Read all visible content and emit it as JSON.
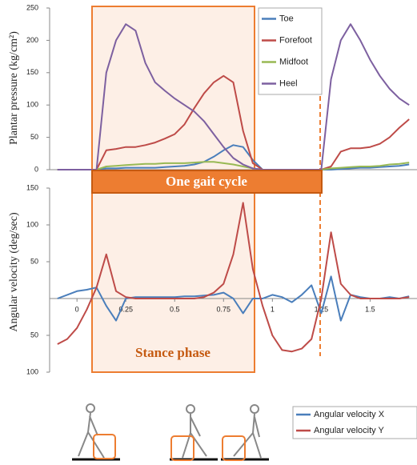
{
  "chart_data": [
    {
      "type": "line",
      "y_label": "Plantar pressure  (kg/cm²)",
      "annotations": [
        "One gait cycle"
      ],
      "xlim": [
        -0.14,
        1.74
      ],
      "ylim": [
        0,
        250
      ],
      "yticks": [
        0,
        50,
        100,
        150,
        200,
        250
      ],
      "x": [
        -0.1,
        -0.05,
        0,
        0.05,
        0.1,
        0.15,
        0.2,
        0.25,
        0.3,
        0.35,
        0.4,
        0.45,
        0.5,
        0.55,
        0.6,
        0.65,
        0.7,
        0.75,
        0.8,
        0.85,
        0.9,
        0.95,
        1.0,
        1.05,
        1.1,
        1.15,
        1.2,
        1.25,
        1.3,
        1.35,
        1.4,
        1.45,
        1.5,
        1.55,
        1.6,
        1.65,
        1.7
      ],
      "series": [
        {
          "name": "Toe",
          "color": "#4a7ebb",
          "values": [
            0,
            0,
            0,
            0,
            0,
            2,
            2,
            3,
            3,
            3,
            3,
            4,
            5,
            6,
            8,
            12,
            20,
            30,
            38,
            35,
            15,
            0,
            0,
            0,
            0,
            0,
            0,
            0,
            0,
            1,
            2,
            3,
            3,
            4,
            5,
            6,
            8
          ]
        },
        {
          "name": "Forefoot",
          "color": "#be4b48",
          "values": [
            0,
            0,
            0,
            0,
            0,
            30,
            32,
            35,
            35,
            38,
            42,
            48,
            55,
            70,
            95,
            118,
            135,
            145,
            135,
            60,
            10,
            0,
            0,
            0,
            0,
            0,
            0,
            0,
            5,
            28,
            33,
            33,
            35,
            40,
            50,
            65,
            78
          ]
        },
        {
          "name": "Midfoot",
          "color": "#98b954",
          "values": [
            0,
            0,
            0,
            0,
            0,
            5,
            6,
            7,
            8,
            9,
            9,
            10,
            10,
            10,
            11,
            12,
            12,
            10,
            8,
            5,
            2,
            0,
            0,
            0,
            0,
            0,
            0,
            0,
            2,
            3,
            4,
            5,
            5,
            6,
            8,
            9,
            11
          ]
        },
        {
          "name": "Heel",
          "color": "#7d60a0",
          "values": [
            0,
            0,
            0,
            0,
            0,
            150,
            200,
            225,
            215,
            165,
            135,
            122,
            110,
            100,
            90,
            75,
            55,
            35,
            18,
            8,
            2,
            0,
            0,
            0,
            0,
            0,
            0,
            0,
            140,
            200,
            225,
            200,
            170,
            145,
            125,
            110,
            100
          ]
        }
      ]
    },
    {
      "type": "line",
      "y_label": "Angular velocity (deg/sec)",
      "annotations": [
        "Stance phase"
      ],
      "xlim": [
        -0.14,
        1.74
      ],
      "xticks": [
        0,
        0.25,
        0.5,
        0.75,
        1,
        1.25,
        1.5
      ],
      "ylim": [
        -100,
        150
      ],
      "yticks": [
        150,
        100,
        50,
        {
          "value": -50,
          "label": "50"
        },
        {
          "value": -100,
          "label": "100"
        }
      ],
      "x": [
        -0.1,
        -0.05,
        0,
        0.05,
        0.1,
        0.15,
        0.2,
        0.25,
        0.3,
        0.35,
        0.4,
        0.45,
        0.5,
        0.55,
        0.6,
        0.65,
        0.7,
        0.75,
        0.8,
        0.85,
        0.9,
        0.95,
        1.0,
        1.05,
        1.1,
        1.15,
        1.2,
        1.25,
        1.3,
        1.35,
        1.4,
        1.45,
        1.5,
        1.55,
        1.6,
        1.65,
        1.7
      ],
      "series": [
        {
          "name": "Angular velocity X",
          "color": "#4a7ebb",
          "values": [
            0,
            5,
            10,
            12,
            15,
            -10,
            -30,
            0,
            2,
            2,
            2,
            2,
            2,
            3,
            3,
            4,
            5,
            8,
            0,
            -20,
            0,
            0,
            5,
            2,
            -5,
            5,
            18,
            -20,
            30,
            -30,
            5,
            2,
            0,
            0,
            2,
            0,
            3
          ]
        },
        {
          "name": "Angular velocity Y",
          "color": "#be4b48",
          "values": [
            -62,
            -55,
            -40,
            -15,
            15,
            60,
            10,
            2,
            0,
            0,
            0,
            0,
            0,
            0,
            0,
            2,
            8,
            20,
            60,
            130,
            40,
            -10,
            -50,
            -70,
            -72,
            -68,
            -55,
            0,
            90,
            20,
            5,
            0,
            0,
            0,
            0,
            0,
            2
          ]
        }
      ]
    }
  ]
}
